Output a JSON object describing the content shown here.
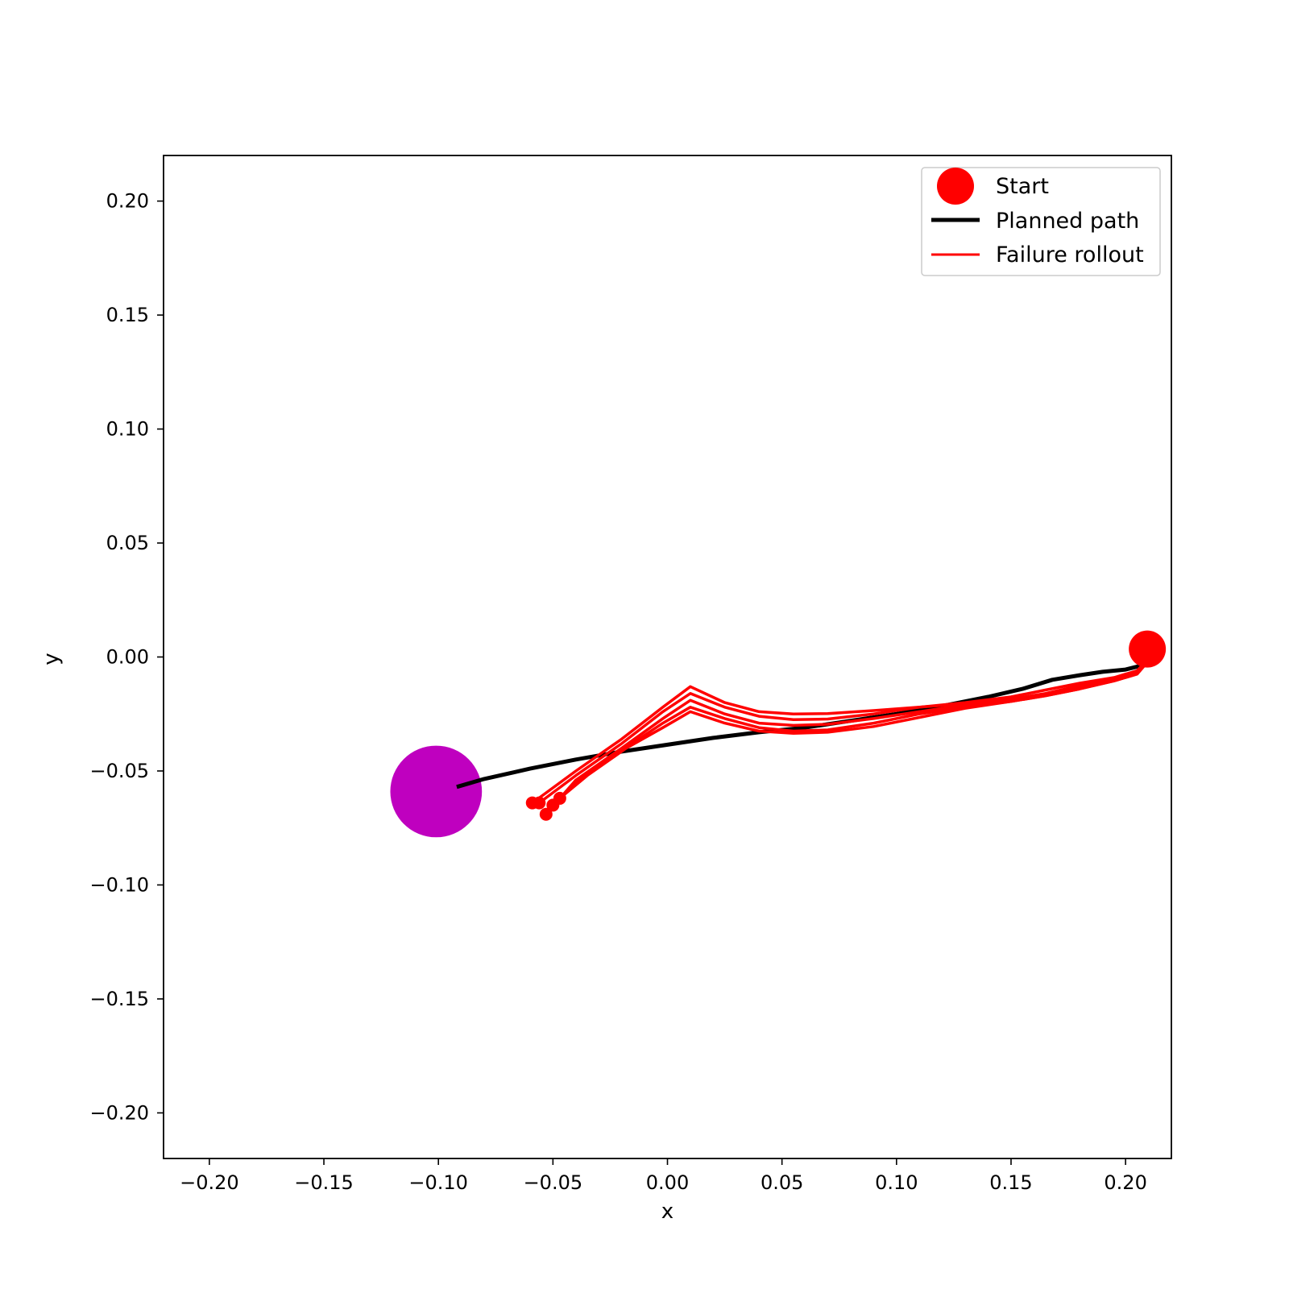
{
  "chart_data": {
    "type": "scatter",
    "title": "",
    "xlabel": "x",
    "ylabel": "y",
    "xlim": [
      -0.22,
      0.22
    ],
    "ylim": [
      -0.22,
      0.22
    ],
    "xticks": [
      -0.2,
      -0.15,
      -0.1,
      -0.05,
      0.0,
      0.05,
      0.1,
      0.15,
      0.2
    ],
    "yticks": [
      -0.2,
      -0.15,
      -0.1,
      -0.05,
      0.0,
      0.05,
      0.1,
      0.15,
      0.2
    ],
    "xtick_labels": [
      "−0.20",
      "−0.15",
      "−0.10",
      "−0.05",
      "0.00",
      "0.05",
      "0.10",
      "0.15",
      "0.20"
    ],
    "ytick_labels": [
      "−0.20",
      "−0.15",
      "−0.10",
      "−0.05",
      "0.00",
      "0.05",
      "0.10",
      "0.15",
      "0.20"
    ],
    "grid": false,
    "legend": {
      "location": "upper right",
      "entries": [
        {
          "label": "Start",
          "marker": "circle",
          "color": "#ff0000"
        },
        {
          "label": "Planned path",
          "marker": "line-thick",
          "color": "#000000"
        },
        {
          "label": "Failure rollout",
          "marker": "line",
          "color": "#ff0000"
        }
      ]
    },
    "goal": {
      "x": -0.101,
      "y": -0.059,
      "radius": 0.02,
      "color": "#bf00bf"
    },
    "start": {
      "x": 0.2095,
      "y": 0.0035,
      "color": "#ff0000"
    },
    "planned_path": {
      "name": "Planned path",
      "color": "#000000",
      "x": [
        -0.092,
        -0.08,
        -0.06,
        -0.04,
        -0.02,
        0.0,
        0.02,
        0.04,
        0.06,
        0.08,
        0.1,
        0.12,
        0.14,
        0.155,
        0.168,
        0.18,
        0.19,
        0.2,
        0.206,
        0.208,
        0.209
      ],
      "y": [
        -0.057,
        -0.0535,
        -0.049,
        -0.045,
        -0.0415,
        -0.0385,
        -0.0355,
        -0.033,
        -0.031,
        -0.028,
        -0.025,
        -0.0215,
        -0.0175,
        -0.014,
        -0.01,
        -0.008,
        -0.0065,
        -0.0055,
        -0.004,
        -0.002,
        0.0
      ]
    },
    "failure_rollouts": [
      {
        "x": [
          -0.059,
          -0.04,
          -0.02,
          -0.002,
          0.01,
          0.025,
          0.04,
          0.055,
          0.07,
          0.09,
          0.11,
          0.13,
          0.15,
          0.165,
          0.18,
          0.195,
          0.205,
          0.208,
          0.209,
          0.209
        ],
        "y": [
          -0.064,
          -0.05,
          -0.036,
          -0.022,
          -0.013,
          -0.02,
          -0.024,
          -0.025,
          -0.0248,
          -0.0235,
          -0.022,
          -0.02,
          -0.0175,
          -0.0145,
          -0.0115,
          -0.009,
          -0.006,
          -0.003,
          0.0,
          0.004
        ]
      },
      {
        "x": [
          -0.056,
          -0.04,
          -0.02,
          -0.002,
          0.01,
          0.025,
          0.04,
          0.055,
          0.07,
          0.09,
          0.11,
          0.13,
          0.15,
          0.165,
          0.18,
          0.195,
          0.205,
          0.208,
          0.209,
          0.209
        ],
        "y": [
          -0.064,
          -0.052,
          -0.038,
          -0.024,
          -0.016,
          -0.022,
          -0.026,
          -0.0275,
          -0.0272,
          -0.025,
          -0.022,
          -0.0205,
          -0.0185,
          -0.016,
          -0.0125,
          -0.0095,
          -0.0065,
          -0.003,
          0.0,
          0.004
        ]
      },
      {
        "x": [
          -0.053,
          -0.04,
          -0.02,
          -0.002,
          0.01,
          0.025,
          0.04,
          0.055,
          0.07,
          0.09,
          0.11,
          0.13,
          0.15,
          0.165,
          0.18,
          0.195,
          0.205,
          0.208,
          0.209,
          0.209
        ],
        "y": [
          -0.069,
          -0.054,
          -0.04,
          -0.027,
          -0.019,
          -0.025,
          -0.029,
          -0.03,
          -0.0295,
          -0.027,
          -0.024,
          -0.021,
          -0.019,
          -0.0165,
          -0.0135,
          -0.01,
          -0.007,
          -0.0035,
          0.0,
          0.004
        ]
      },
      {
        "x": [
          -0.05,
          -0.04,
          -0.02,
          -0.002,
          0.01,
          0.025,
          0.04,
          0.055,
          0.07,
          0.09,
          0.11,
          0.13,
          0.15,
          0.165,
          0.18,
          0.195,
          0.205,
          0.208,
          0.209,
          0.209
        ],
        "y": [
          -0.065,
          -0.055,
          -0.041,
          -0.029,
          -0.022,
          -0.027,
          -0.031,
          -0.0325,
          -0.032,
          -0.029,
          -0.025,
          -0.022,
          -0.0195,
          -0.017,
          -0.014,
          -0.0105,
          -0.0075,
          -0.004,
          0.0,
          0.004
        ]
      },
      {
        "x": [
          -0.047,
          -0.035,
          -0.018,
          -0.002,
          0.01,
          0.025,
          0.04,
          0.055,
          0.07,
          0.09,
          0.11,
          0.13,
          0.15,
          0.165,
          0.18,
          0.195,
          0.205,
          0.208,
          0.209,
          0.209
        ],
        "y": [
          -0.062,
          -0.052,
          -0.04,
          -0.031,
          -0.024,
          -0.029,
          -0.0325,
          -0.0335,
          -0.033,
          -0.0305,
          -0.0265,
          -0.0225,
          -0.0195,
          -0.017,
          -0.014,
          -0.0105,
          -0.0075,
          -0.004,
          0.0,
          0.004
        ]
      }
    ]
  }
}
